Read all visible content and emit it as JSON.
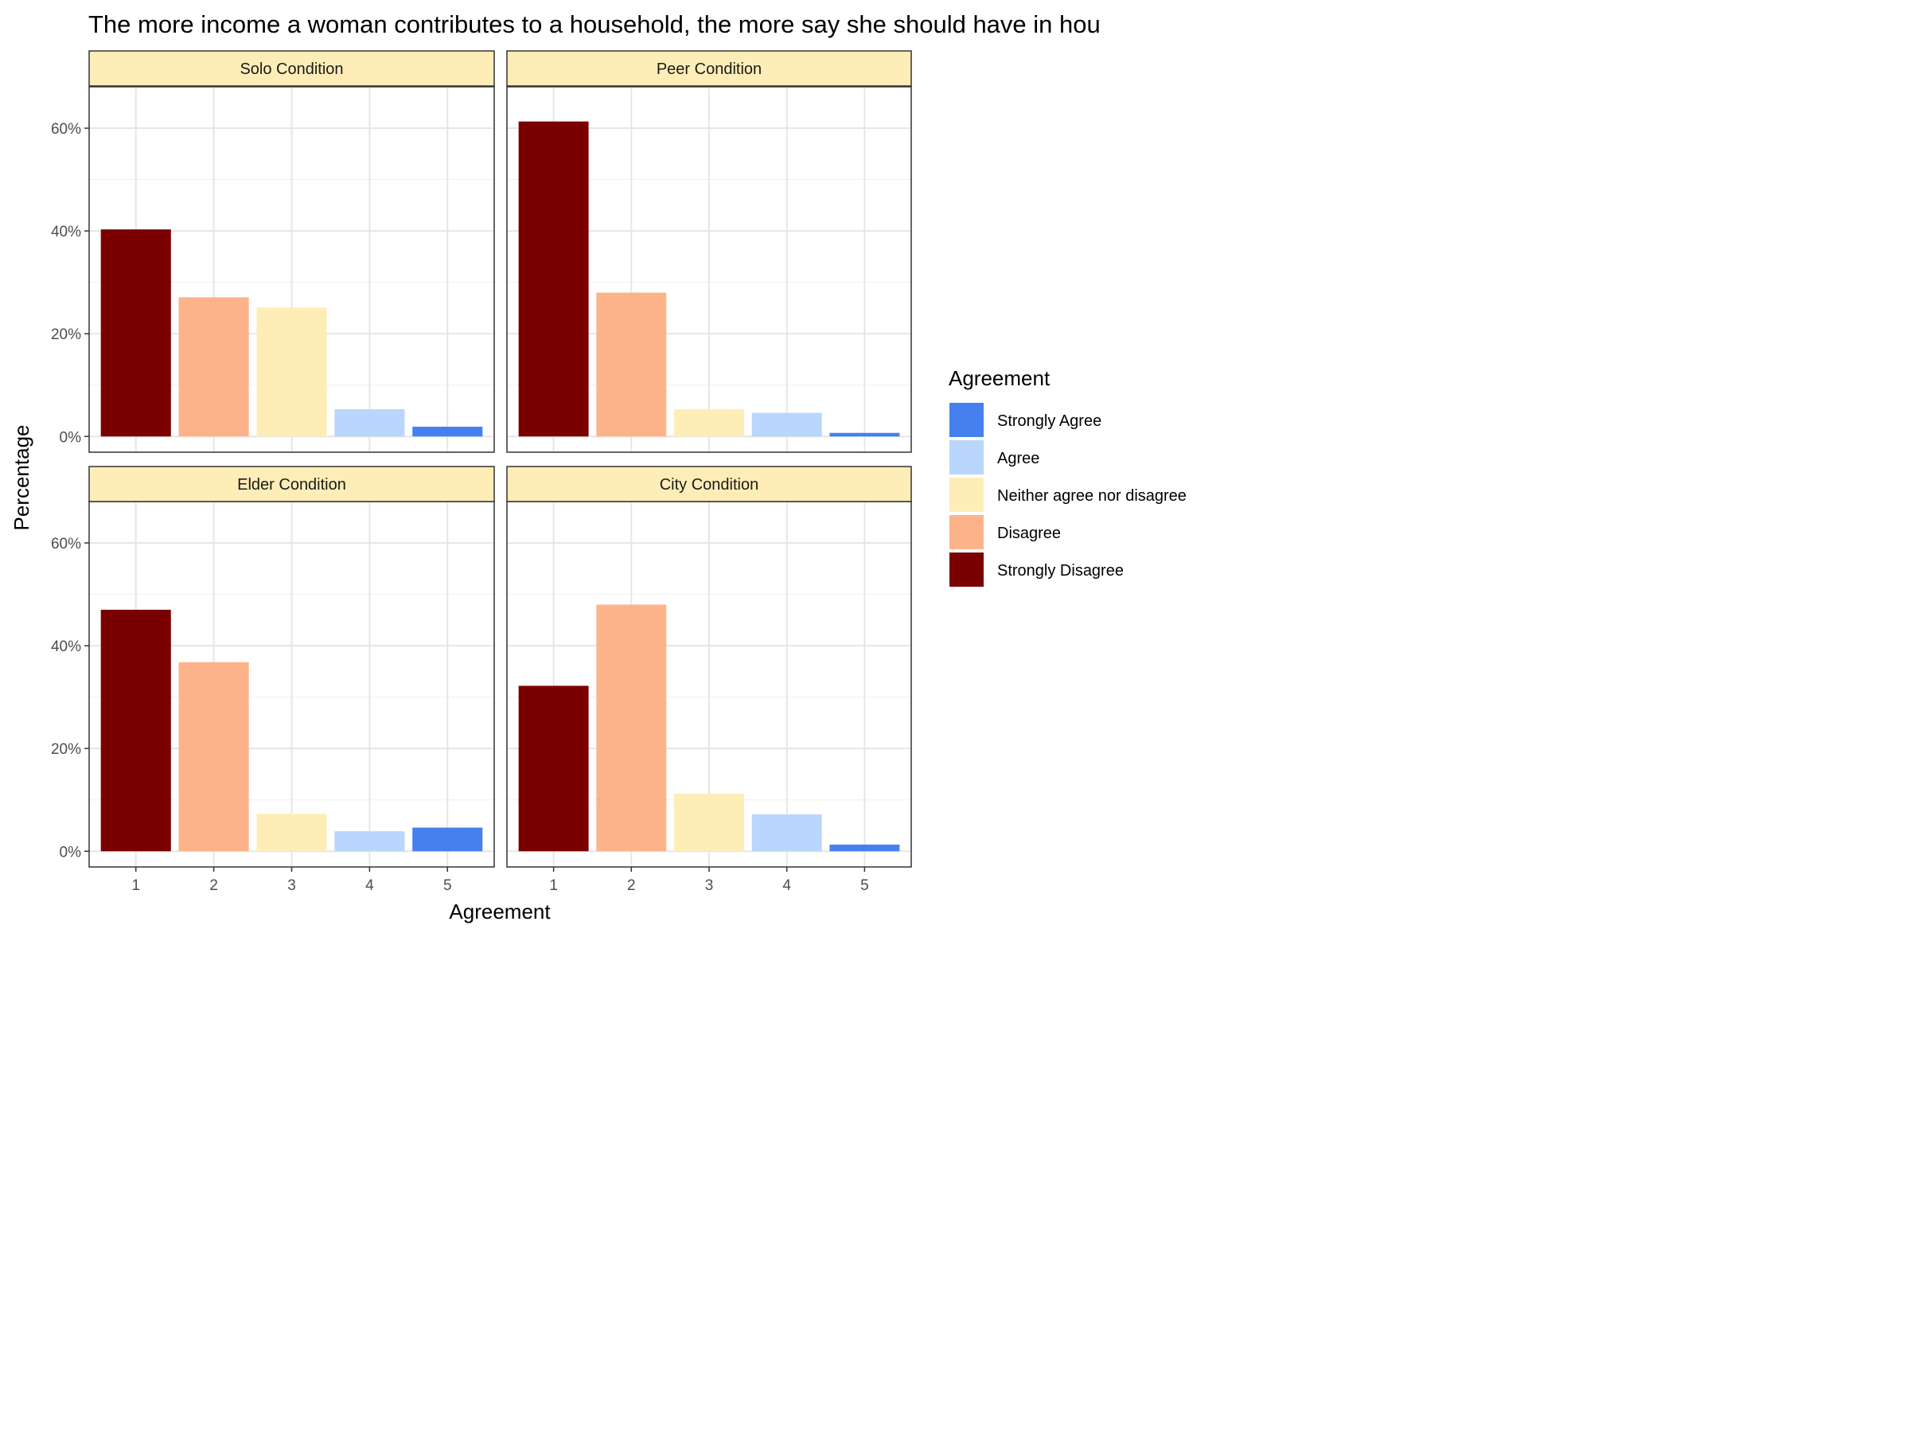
{
  "chart_data": {
    "type": "bar",
    "title": "The more income a woman contributes to a household, the more say she should have in hou",
    "xlabel": "Agreement",
    "ylabel": "Percentage",
    "categories": [
      "1",
      "2",
      "3",
      "4",
      "5"
    ],
    "y_ticks": [
      "0%",
      "20%",
      "40%",
      "60%"
    ],
    "ylim": [
      0,
      65
    ],
    "grid": true,
    "legend_position": "right",
    "legend_title": "Agreement",
    "legend": [
      {
        "label": "Strongly Agree",
        "color": "#4580ee"
      },
      {
        "label": "Agree",
        "color": "#b9d6fd"
      },
      {
        "label": "Neither agree nor disagree",
        "color": "#feedb6"
      },
      {
        "label": "Disagree",
        "color": "#fdb38a"
      },
      {
        "label": "Strongly Disagree",
        "color": "#7a0000"
      }
    ],
    "bar_colors": [
      "#7a0000",
      "#fdb38a",
      "#feedb6",
      "#b9d6fd",
      "#4580ee"
    ],
    "strip_fill": "#feedb6",
    "panels": [
      {
        "title": "Solo Condition",
        "values": [
          40.3,
          27.1,
          25.1,
          5.3,
          1.9
        ]
      },
      {
        "title": "Peer Condition",
        "values": [
          61.3,
          28.0,
          5.3,
          4.6,
          0.7
        ]
      },
      {
        "title": "Elder Condition",
        "values": [
          47.0,
          36.8,
          7.3,
          3.9,
          4.6
        ]
      },
      {
        "title": "City Condition",
        "values": [
          32.2,
          48.0,
          11.2,
          7.2,
          1.3
        ]
      }
    ]
  }
}
